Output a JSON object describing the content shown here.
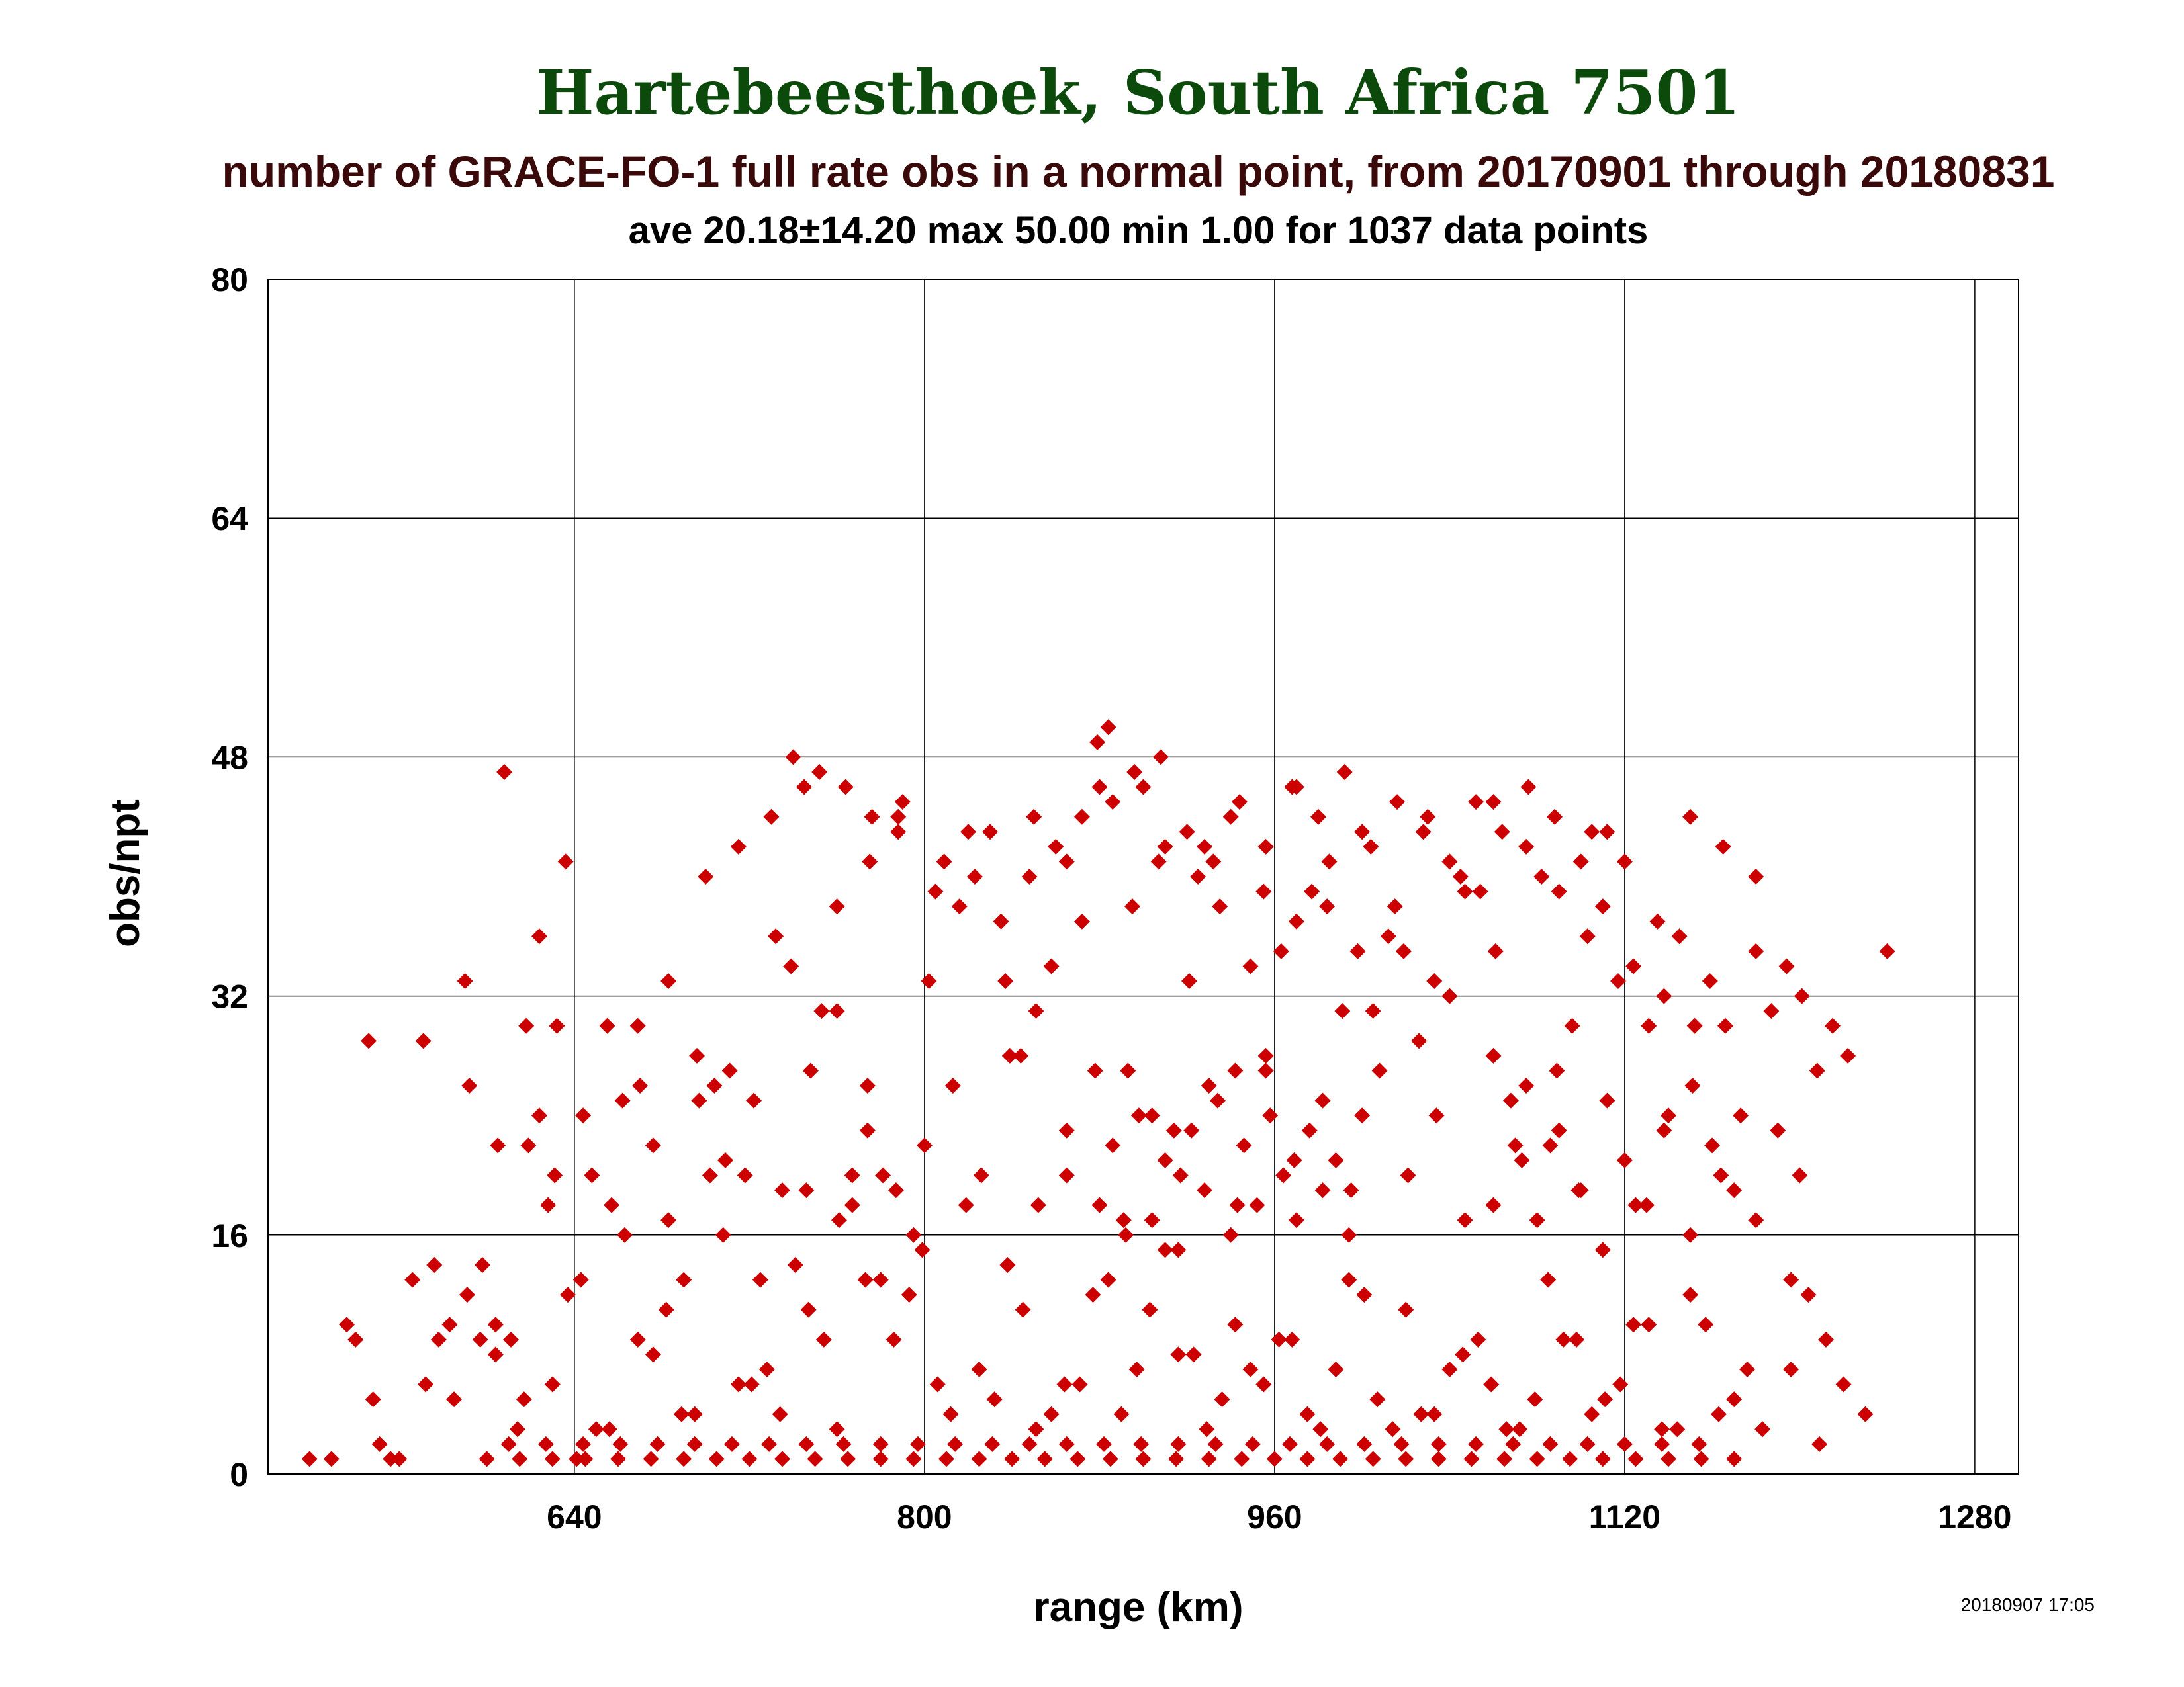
{
  "chart_data": {
    "type": "scatter",
    "title": "Hartebeesthoek, South Africa 7501",
    "subtitle": "number of GRACE-FO-1 full rate obs in a normal point, from 20170901 through 20180831",
    "stats_line": "ave 20.18±14.20 max 50.00 min 1.00 for 1037 data points",
    "xlabel": "range (km)",
    "ylabel": "obs/npt",
    "timestamp": "20180907 17:05",
    "xlim": [
      500,
      1300
    ],
    "ylim": [
      0,
      80
    ],
    "x_ticks": [
      640,
      800,
      960,
      1120,
      1280
    ],
    "y_ticks": [
      0,
      16,
      32,
      48,
      64,
      80
    ],
    "grid": true,
    "marker": "diamond",
    "title_color": "#0b4a0b",
    "subtitle_color": "#3a0a0a",
    "point_color": "#cc0000",
    "x": [
      519,
      529,
      536,
      540,
      546,
      548,
      551,
      556,
      566,
      571,
      576,
      583,
      590,
      597,
      604,
      608,
      614,
      619,
      624,
      628,
      632,
      636,
      641,
      648,
      655,
      662,
      669,
      676,
      683,
      690,
      697,
      704,
      711,
      718,
      725,
      732,
      739,
      746,
      753,
      760,
      767,
      774,
      781,
      788,
      795,
      802,
      809,
      816,
      823,
      830,
      837,
      844,
      851,
      858,
      865,
      872,
      879,
      886,
      893,
      900,
      907,
      914,
      921,
      928,
      935,
      942,
      949,
      956,
      963,
      970,
      977,
      984,
      991,
      998,
      1005,
      1012,
      1019,
      1026,
      1033,
      1040,
      1047,
      1054,
      1061,
      1068,
      1075,
      1082,
      1089,
      1096,
      1103,
      1110,
      1117,
      1124,
      1131,
      1138,
      1145,
      1152,
      1159,
      1166,
      1173,
      1180,
      1187,
      1194,
      1201,
      1208,
      1215,
      1222,
      560,
      572,
      585,
      598,
      611,
      624,
      637,
      650,
      663,
      676,
      689,
      702,
      715,
      728,
      741,
      754,
      767,
      780,
      793,
      806,
      819,
      832,
      845,
      858,
      871,
      884,
      897,
      910,
      923,
      936,
      949,
      962,
      975,
      988,
      1001,
      1014,
      1027,
      1040,
      1053,
      1066,
      1079,
      1092,
      1105,
      1118,
      1131,
      1144,
      1157,
      1170,
      1183,
      1196,
      1209,
      578,
      591,
      604,
      617,
      630,
      643,
      656,
      669,
      682,
      695,
      708,
      721,
      734,
      747,
      760,
      773,
      786,
      799,
      812,
      825,
      838,
      851,
      864,
      877,
      890,
      903,
      916,
      929,
      942,
      955,
      968,
      981,
      994,
      1007,
      1020,
      1033,
      1046,
      1059,
      1072,
      1085,
      1098,
      1111,
      1124,
      1137,
      1150,
      1163,
      1176,
      592,
      605,
      618,
      631,
      644,
      657,
      670,
      683,
      696,
      709,
      722,
      735,
      748,
      761,
      774,
      787,
      800,
      813,
      826,
      839,
      852,
      865,
      878,
      891,
      904,
      917,
      930,
      943,
      956,
      969,
      982,
      995,
      1008,
      1021,
      1034,
      1047,
      1060,
      1073,
      1086,
      1099,
      1112,
      1125,
      1138,
      1151,
      1164,
      600,
      615,
      630,
      645,
      660,
      675,
      690,
      705,
      720,
      735,
      750,
      765,
      780,
      795,
      810,
      825,
      840,
      855,
      870,
      885,
      900,
      915,
      930,
      945,
      960,
      975,
      990,
      1005,
      1020,
      1035,
      1050,
      1065,
      1080,
      1095,
      1110,
      1125,
      1140,
      1155,
      1170,
      610,
      627,
      644,
      661,
      678,
      695,
      712,
      729,
      746,
      763,
      780,
      797,
      814,
      831,
      848,
      865,
      882,
      899,
      916,
      933,
      950,
      967,
      984,
      1001,
      1018,
      1035,
      1052,
      1069,
      1086,
      1103,
      1120,
      1137,
      1154,
      700,
      715,
      730,
      745,
      760,
      775,
      790,
      805,
      820,
      835,
      850,
      865,
      880,
      895,
      910,
      925,
      940,
      955,
      970,
      985,
      1000,
      1015,
      1030,
      1045,
      1060,
      1075,
      1090,
      1105,
      1120,
      1135,
      1150,
      1165,
      1180,
      740,
      752,
      764,
      776,
      788,
      848,
      860,
      872,
      884,
      896,
      908,
      920,
      932,
      944,
      956,
      968,
      980,
      992,
      1004,
      1016,
      1028,
      1040,
      1052,
      1064,
      1076,
      1088,
      1100,
      1112,
      880,
      886,
      892,
      898,
      904,
      910,
      916,
      922,
      928,
      934,
      940,
      946,
      952,
      958,
      964,
      970,
      976,
      982,
      988,
      994,
      1000,
      1060,
      1070,
      1080,
      1090,
      1100,
      1110,
      1120,
      1130,
      1140,
      1150,
      1160,
      1170,
      1180,
      1190,
      1200,
      1196,
      1204,
      1212,
      1220,
      1230,
      1240
    ],
    "y": [
      1,
      1,
      10,
      9,
      29,
      5,
      2,
      1,
      13,
      29,
      14,
      10,
      33,
      9,
      10,
      47,
      3,
      22,
      36,
      18,
      30,
      41,
      1,
      20,
      30,
      25,
      30,
      22,
      33,
      13,
      25,
      26,
      27,
      20,
      13,
      36,
      34,
      19,
      31,
      31,
      20,
      26,
      20,
      44,
      16,
      33,
      41,
      38,
      40,
      43,
      33,
      28,
      31,
      34,
      20,
      37,
      49,
      45,
      27,
      46,
      41,
      23,
      33,
      42,
      38,
      27,
      34,
      27,
      35,
      37,
      39,
      38,
      31,
      35,
      31,
      36,
      35,
      29,
      33,
      32,
      39,
      39,
      35,
      25,
      26,
      40,
      27,
      30,
      36,
      38,
      33,
      34,
      30,
      32,
      36,
      30,
      33,
      30,
      24,
      35,
      31,
      34,
      32,
      27,
      30,
      28,
      1,
      6,
      5,
      14,
      9,
      24,
      12,
      3,
      16,
      8,
      4,
      20,
      6,
      7,
      14,
      9,
      18,
      13,
      12,
      6,
      18,
      5,
      11,
      4,
      6,
      13,
      7,
      15,
      8,
      5,
      7,
      9,
      4,
      7,
      12,
      3,
      4,
      7,
      9,
      3,
      5,
      9,
      4,
      6,
      10,
      3,
      10,
      5,
      3,
      7,
      2,
      9,
      12,
      8,
      5,
      6,
      13,
      3,
      9,
      11,
      4,
      16,
      6,
      4,
      11,
      3,
      13,
      9,
      15,
      4,
      7,
      14,
      3,
      6,
      12,
      4,
      11,
      8,
      3,
      10,
      6,
      9,
      3,
      13,
      5,
      11,
      4,
      8,
      6,
      3,
      13,
      9,
      5,
      10,
      3,
      12,
      4,
      7,
      26,
      22,
      30,
      20,
      24,
      18,
      26,
      17,
      28,
      21,
      25,
      19,
      27,
      17,
      23,
      19,
      22,
      26,
      20,
      28,
      18,
      23,
      27,
      17,
      24,
      20,
      26,
      18,
      28,
      21,
      25,
      19,
      27,
      20,
      24,
      17,
      28,
      21,
      22,
      19,
      25,
      18,
      23,
      26,
      20,
      1,
      1,
      1,
      1,
      1,
      1,
      1,
      1,
      1,
      1,
      1,
      1,
      1,
      1,
      1,
      1,
      1,
      1,
      1,
      1,
      1,
      1,
      1,
      1,
      1,
      1,
      1,
      1,
      1,
      1,
      1,
      1,
      1,
      1,
      1,
      1,
      1,
      1,
      1,
      2,
      2,
      2,
      2,
      2,
      2,
      2,
      2,
      2,
      2,
      2,
      2,
      2,
      2,
      2,
      2,
      2,
      2,
      2,
      2,
      2,
      2,
      2,
      2,
      2,
      2,
      2,
      2,
      2,
      2,
      2,
      2,
      2,
      40,
      42,
      44,
      46,
      38,
      41,
      45,
      39,
      43,
      37,
      44,
      41,
      46,
      38,
      42,
      40,
      44,
      39,
      46,
      41,
      43,
      38,
      44,
      40,
      45,
      42,
      39,
      43,
      41,
      37,
      44,
      42,
      40,
      48,
      47,
      46,
      44,
      43,
      40,
      42,
      44,
      50,
      47,
      48,
      43,
      41,
      45,
      42,
      46,
      44,
      47,
      42,
      45,
      43,
      41,
      45,
      43,
      46,
      44,
      41,
      43,
      18,
      22,
      16,
      24,
      17,
      21,
      15,
      23,
      19,
      25,
      16,
      22,
      18,
      24,
      20,
      17,
      23,
      19,
      21,
      16,
      24,
      18,
      22,
      17,
      23,
      19,
      15,
      21,
      18,
      24,
      16,
      22,
      19,
      17,
      23,
      20,
      13,
      12,
      9,
      6,
      4,
      35
    ]
  }
}
